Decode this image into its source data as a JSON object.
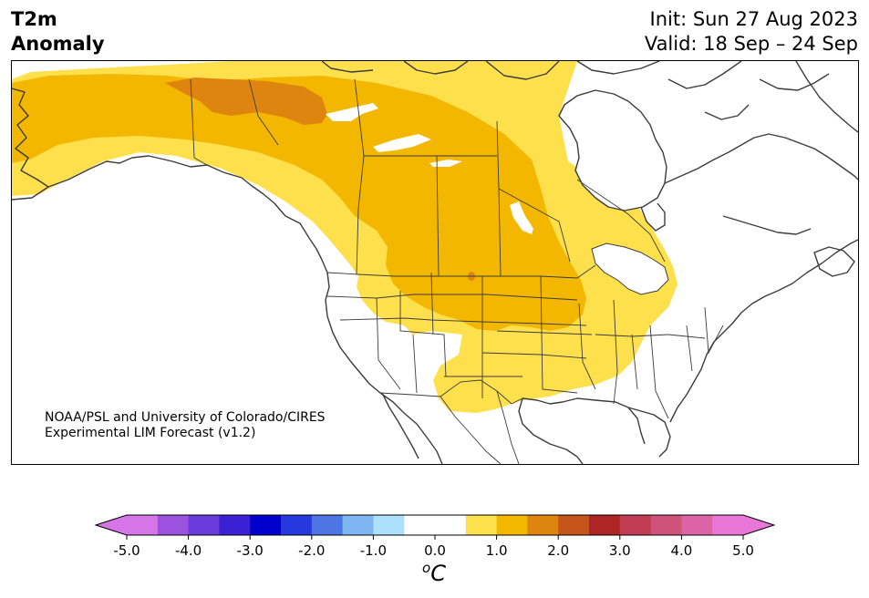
{
  "title": {
    "line1": "T2m",
    "line2": "Anomaly"
  },
  "header_right": {
    "init": "Init: Sun 27 Aug 2023",
    "valid": "Valid: 18 Sep – 24 Sep"
  },
  "credit": {
    "line1": "NOAA/PSL and University of Colorado/CIRES",
    "line2": "Experimental LIM Forecast (v1.2)"
  },
  "colorbar": {
    "unit_super": "o",
    "unit_main": "C",
    "ticks": [
      "-5.0",
      "-4.0",
      "-3.0",
      "-2.0",
      "-1.0",
      "0.0",
      "1.0",
      "2.0",
      "3.0",
      "4.0",
      "5.0"
    ],
    "tick_values": [
      -5,
      -4,
      -3,
      -2,
      -1,
      0,
      1,
      2,
      3,
      4,
      5
    ],
    "range": [
      -5,
      5
    ],
    "bins": [
      {
        "from": -5.5,
        "to": -5.0,
        "color": "#d676e9"
      },
      {
        "from": -5.0,
        "to": -4.5,
        "color": "#d676e9"
      },
      {
        "from": -4.5,
        "to": -4.0,
        "color": "#9b52de"
      },
      {
        "from": -4.0,
        "to": -3.5,
        "color": "#6a3cdc"
      },
      {
        "from": -3.5,
        "to": -3.0,
        "color": "#3b20d4"
      },
      {
        "from": -3.0,
        "to": -2.5,
        "color": "#0000cc"
      },
      {
        "from": -2.5,
        "to": -2.0,
        "color": "#2738dc"
      },
      {
        "from": -2.0,
        "to": -1.5,
        "color": "#4e75e4"
      },
      {
        "from": -1.5,
        "to": -1.0,
        "color": "#7db4f1"
      },
      {
        "from": -1.0,
        "to": -0.5,
        "color": "#ade0fa"
      },
      {
        "from": -0.5,
        "to": 0.5,
        "color": "#ffffff"
      },
      {
        "from": 0.5,
        "to": 1.0,
        "color": "#fee04c"
      },
      {
        "from": 1.0,
        "to": 1.5,
        "color": "#f4b700"
      },
      {
        "from": 1.5,
        "to": 2.0,
        "color": "#de8510"
      },
      {
        "from": 2.0,
        "to": 2.5,
        "color": "#c5541a"
      },
      {
        "from": 2.5,
        "to": 3.0,
        "color": "#ae2525"
      },
      {
        "from": 3.0,
        "to": 3.5,
        "color": "#c13b52"
      },
      {
        "from": 3.5,
        "to": 4.0,
        "color": "#cf527b"
      },
      {
        "from": 4.0,
        "to": 4.5,
        "color": "#db63a6"
      },
      {
        "from": 4.5,
        "to": 5.0,
        "color": "#e877d7"
      },
      {
        "from": 5.0,
        "to": 5.5,
        "color": "#e877d7"
      }
    ]
  },
  "map_colors": {
    "anomaly_0_5_to_1_0": "#fee04c",
    "anomaly_1_0_to_1_5": "#f4b700",
    "anomaly_1_5_to_2_0": "#de8510",
    "coastline": "#3c3c3c",
    "borders": "#3c3c3c"
  }
}
